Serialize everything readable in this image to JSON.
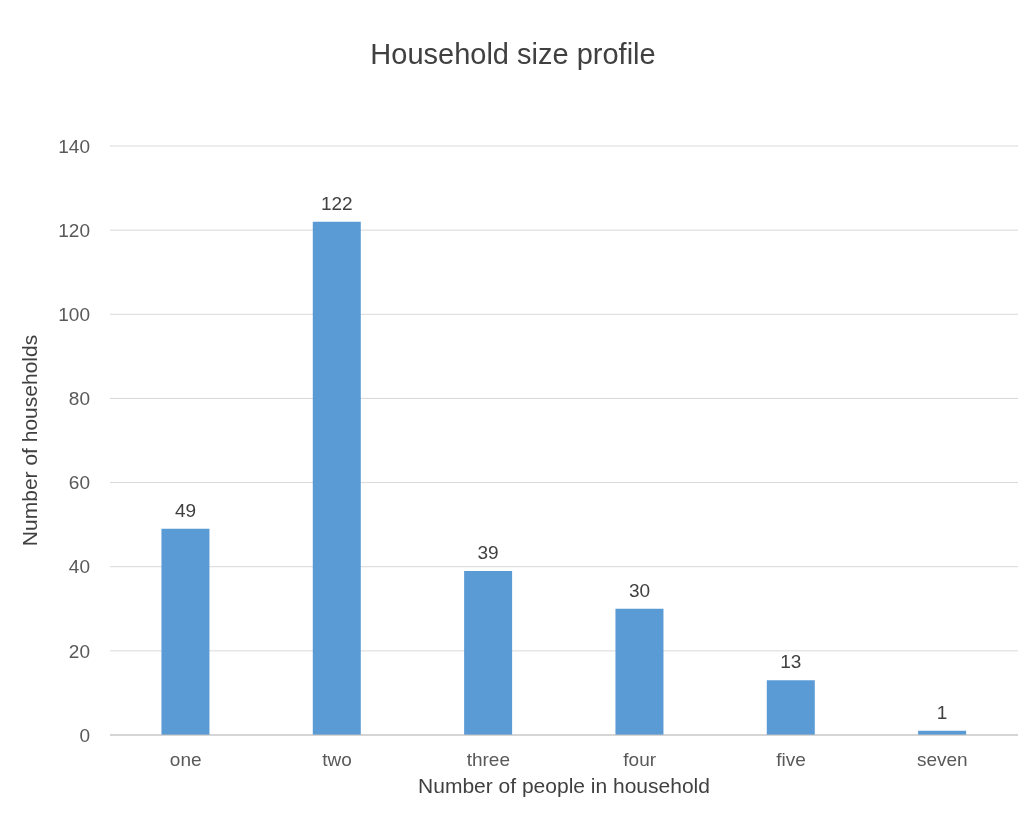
{
  "chart_data": {
    "type": "bar",
    "title": "Household size profile",
    "xlabel": "Number of people in household",
    "ylabel": "Number of households",
    "categories": [
      "one",
      "two",
      "three",
      "four",
      "five",
      "seven"
    ],
    "values": [
      49,
      122,
      39,
      30,
      13,
      1
    ],
    "color": "#5b9bd5",
    "ylim": [
      0,
      140
    ],
    "yticks": [
      0,
      20,
      40,
      60,
      80,
      100,
      120,
      140
    ],
    "grid": "y",
    "data_labels": true
  }
}
